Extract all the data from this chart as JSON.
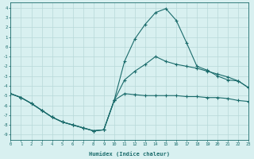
{
  "xlabel": "Humidex (Indice chaleur)",
  "background_color": "#d8f0f0",
  "grid_color": "#b8d8d8",
  "line_color": "#1a6b6b",
  "x_values": [
    0,
    1,
    2,
    3,
    4,
    5,
    6,
    7,
    8,
    9,
    10,
    11,
    12,
    13,
    14,
    15,
    16,
    17,
    18,
    19,
    20,
    21,
    22,
    23
  ],
  "line_max": [
    -4.8,
    -5.2,
    -5.8,
    -6.5,
    -7.2,
    -7.7,
    -8.0,
    -8.3,
    -8.6,
    -8.5,
    -5.5,
    -1.5,
    0.8,
    2.3,
    3.5,
    3.9,
    2.7,
    0.4,
    -2.0,
    -2.4,
    -3.0,
    -3.4,
    -3.5,
    -4.2
  ],
  "line_mid": [
    -4.8,
    -5.2,
    -5.8,
    -6.5,
    -7.2,
    -7.7,
    -8.0,
    -8.3,
    -8.6,
    -8.5,
    -5.5,
    -3.4,
    -2.5,
    -1.8,
    -1.0,
    -1.5,
    -1.8,
    -2.0,
    -2.2,
    -2.5,
    -2.8,
    -3.1,
    -3.5,
    -4.2
  ],
  "line_min": [
    -4.8,
    -5.2,
    -5.8,
    -6.5,
    -7.2,
    -7.7,
    -8.0,
    -8.3,
    -8.6,
    -8.5,
    -5.5,
    -4.8,
    -4.9,
    -5.0,
    -5.0,
    -5.0,
    -5.0,
    -5.1,
    -5.1,
    -5.2,
    -5.2,
    -5.3,
    -5.5,
    -5.6
  ],
  "xlim": [
    0,
    23
  ],
  "ylim": [
    -9.5,
    4.5
  ],
  "yticks": [
    4,
    3,
    2,
    1,
    0,
    -1,
    -2,
    -3,
    -4,
    -5,
    -6,
    -7,
    -8,
    -9
  ],
  "xticks": [
    0,
    1,
    2,
    3,
    4,
    5,
    6,
    7,
    8,
    9,
    10,
    11,
    12,
    13,
    14,
    15,
    16,
    17,
    18,
    19,
    20,
    21,
    22,
    23
  ]
}
